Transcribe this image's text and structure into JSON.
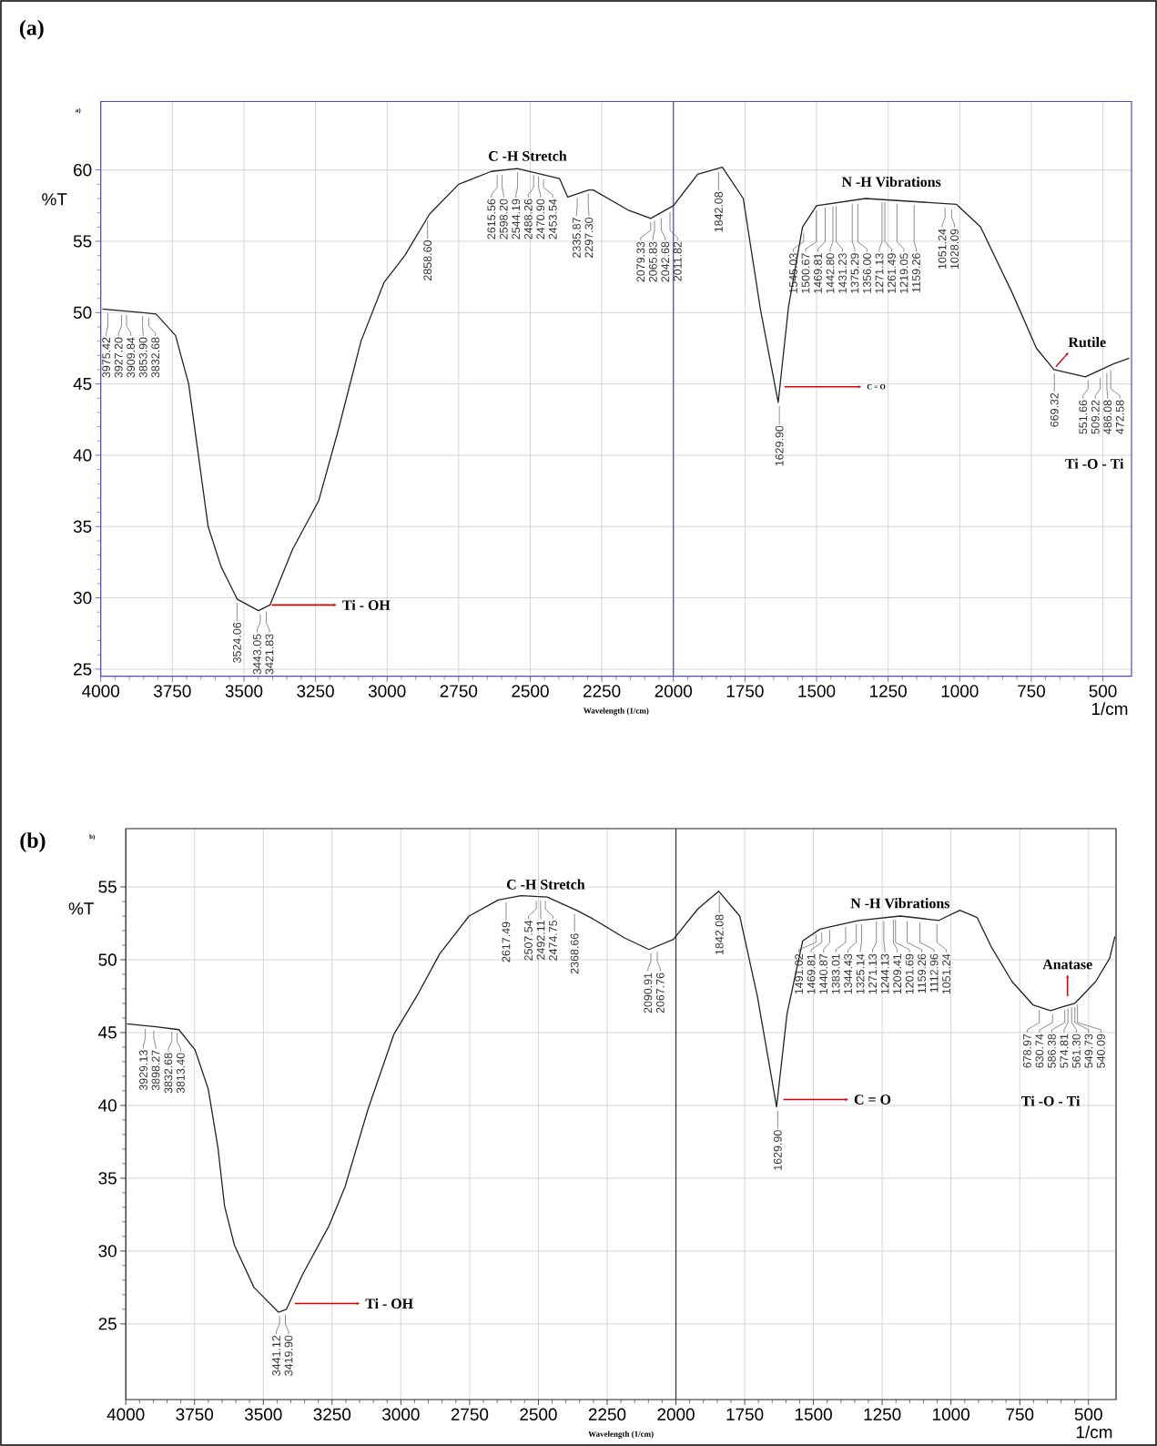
{
  "chart_data": [
    {
      "type": "line",
      "title": "(a)",
      "subtitle": "a)",
      "xlabel": "Wavelength (1/cm)",
      "ylabel": "%T",
      "xlim": [
        4000,
        400
      ],
      "ylim": [
        24.5,
        64.8
      ],
      "xticks": [
        4000,
        3750,
        3500,
        3250,
        3000,
        2750,
        2500,
        2250,
        2000,
        1750,
        1500,
        1250,
        1000,
        750,
        500
      ],
      "yticks": [
        25,
        30,
        35,
        40,
        45,
        50,
        55,
        60
      ],
      "grid": true,
      "ref_lines": [
        {
          "axis": "x",
          "value": 2000,
          "color": "#4a4ac8"
        }
      ],
      "series": [
        {
          "color": "#222222",
          "x": [
            3994,
            3852,
            3807,
            3739,
            3693,
            3659,
            3625,
            3580,
            3523,
            3449,
            3409,
            3330,
            3239,
            3170,
            3091,
            3011,
            2938,
            2852,
            2750,
            2636,
            2545,
            2398,
            2369,
            2295,
            2280,
            2159,
            2079,
            2000,
            1915,
            1829,
            1756,
            1695,
            1634,
            1598,
            1549,
            1500,
            1329,
            1012,
            927,
            817,
            732,
            671,
            561,
            463,
            408
          ],
          "values": [
            50.25,
            50.0,
            49.9,
            48.4,
            45.0,
            40.0,
            35.0,
            32.2,
            29.9,
            29.1,
            29.5,
            33.4,
            36.8,
            41.8,
            48.0,
            52.1,
            54.0,
            56.9,
            59.0,
            59.9,
            60.1,
            59.4,
            58.1,
            58.6,
            58.6,
            57.2,
            56.6,
            57.5,
            59.7,
            60.2,
            58.0,
            50.1,
            43.7,
            50.4,
            56.0,
            57.5,
            58.0,
            57.6,
            56.0,
            51.4,
            47.5,
            46.0,
            45.5,
            46.4,
            46.8
          ]
        }
      ],
      "annotations": [
        "C -H Stretch",
        "N -H Vibrations",
        {
          "text": "Ti - OH",
          "x": 3403,
          "y": 29.5
        },
        {
          "text": "C = O",
          "x": 1612,
          "y": 44.8
        },
        {
          "text": "Rutile",
          "x": 664,
          "y": 46.2
        },
        "Ti -O - Ti",
        {
          "text": "3975.42",
          "x": 3975.42,
          "y": 50.2
        },
        {
          "text": "3927.20",
          "x": 3927.2,
          "y": 50.1
        },
        {
          "text": "3909.84",
          "x": 3909.84,
          "y": 50.1
        },
        {
          "text": "3853.90",
          "x": 3853.9,
          "y": 50.0
        },
        {
          "text": "3832.68",
          "x": 3832.68,
          "y": 49.9
        },
        {
          "text": "3524.06",
          "x": 3524.06,
          "y": 29.9
        },
        {
          "text": "3443.05",
          "x": 3443.05,
          "y": 29.1
        },
        {
          "text": "3421.83",
          "x": 3421.83,
          "y": 29.3
        },
        {
          "text": "2858.60",
          "x": 2858.6,
          "y": 56.7
        },
        {
          "text": "2615.56",
          "x": 2615.56,
          "y": 59.9
        },
        {
          "text": "2598.20",
          "x": 2598.2,
          "y": 59.9
        },
        {
          "text": "2544.19",
          "x": 2544.19,
          "y": 60.1
        },
        {
          "text": "2488.26",
          "x": 2488.26,
          "y": 59.9
        },
        {
          "text": "2470.90",
          "x": 2470.9,
          "y": 59.8
        },
        {
          "text": "2453.54",
          "x": 2453.54,
          "y": 59.6
        },
        {
          "text": "2335.87",
          "x": 2335.87,
          "y": 58.3
        },
        {
          "text": "2297.30",
          "x": 2297.3,
          "y": 58.6
        },
        {
          "text": "2079.33",
          "x": 2079.33,
          "y": 56.6
        },
        {
          "text": "2065.83",
          "x": 2065.83,
          "y": 56.7
        },
        {
          "text": "2042.68",
          "x": 2042.68,
          "y": 56.9
        },
        {
          "text": "2011.82",
          "x": 2011.82,
          "y": 57.3
        },
        {
          "text": "1842.08",
          "x": 1842.08,
          "y": 60.1
        },
        {
          "text": "1629.90",
          "x": 1629.9,
          "y": 43.7
        },
        {
          "text": "1545.03",
          "x": 1545.03,
          "y": 55.8
        },
        {
          "text": "1500.67",
          "x": 1500.67,
          "y": 57.4
        },
        {
          "text": "1469.81",
          "x": 1469.81,
          "y": 57.6
        },
        {
          "text": "1442.80",
          "x": 1442.8,
          "y": 57.7
        },
        {
          "text": "1431.23",
          "x": 1431.23,
          "y": 57.7
        },
        {
          "text": "1375.29",
          "x": 1375.29,
          "y": 57.9
        },
        {
          "text": "1356.00",
          "x": 1356.0,
          "y": 57.9
        },
        {
          "text": "1271.13",
          "x": 1271.13,
          "y": 58.0
        },
        {
          "text": "1261.49",
          "x": 1261.49,
          "y": 58.0
        },
        {
          "text": "1219.05",
          "x": 1219.05,
          "y": 57.9
        },
        {
          "text": "1159.26",
          "x": 1159.26,
          "y": 57.8
        },
        {
          "text": "1051.24",
          "x": 1051.24,
          "y": 57.6
        },
        {
          "text": "1028.09",
          "x": 1028.09,
          "y": 57.5
        },
        {
          "text": "669.32",
          "x": 669.32,
          "y": 46.0
        },
        {
          "text": "551.66",
          "x": 551.66,
          "y": 45.5
        },
        {
          "text": "509.22",
          "x": 509.22,
          "y": 45.7
        },
        {
          "text": "486.08",
          "x": 486.08,
          "y": 46.0
        },
        {
          "text": "472.58",
          "x": 472.58,
          "y": 46.2
        },
        "1/cm"
      ]
    },
    {
      "type": "line",
      "title": "(b)",
      "subtitle": "b)",
      "xlabel": "Wavelength (1/cm)",
      "ylabel": "%T",
      "xlim": [
        4000,
        400
      ],
      "ylim": [
        19.8,
        59
      ],
      "xticks": [
        4000,
        3750,
        3500,
        3250,
        3000,
        2750,
        2500,
        2250,
        2000,
        1750,
        1500,
        1250,
        1000,
        750,
        500
      ],
      "yticks": [
        25,
        30,
        35,
        40,
        45,
        50,
        55
      ],
      "grid": true,
      "ref_lines": [
        {
          "axis": "x",
          "value": 2000,
          "color": "#333333"
        }
      ],
      "series": [
        {
          "color": "#222222",
          "x": [
            3996,
            3890,
            3807,
            3748,
            3700,
            3665,
            3641,
            3605,
            3534,
            3445,
            3416,
            3357,
            3262,
            3203,
            3120,
            3025,
            2942,
            2859,
            2752,
            2646,
            2563,
            2468,
            2362,
            2301,
            2187,
            2098,
            2009,
            1920,
            1844,
            1768,
            1704,
            1634,
            1596,
            1539,
            1476,
            1336,
            1184,
            1044,
            968,
            905,
            854,
            778,
            702,
            638,
            588,
            550,
            474,
            423,
            404
          ],
          "values": [
            45.6,
            45.4,
            45.2,
            43.8,
            41.1,
            37.1,
            33.1,
            30.4,
            27.5,
            25.8,
            26.0,
            28.4,
            31.7,
            34.4,
            39.7,
            44.9,
            47.5,
            50.4,
            53.0,
            54.1,
            54.4,
            54.3,
            53.4,
            52.8,
            51.5,
            50.7,
            51.4,
            53.5,
            54.7,
            53.0,
            47.5,
            39.9,
            46.3,
            51.3,
            52.1,
            52.7,
            53.0,
            52.7,
            53.4,
            52.9,
            50.9,
            48.5,
            46.9,
            46.5,
            46.8,
            47.0,
            48.5,
            50.1,
            51.6
          ]
        }
      ],
      "annotations": [
        "C -H Stretch",
        "N -H Vibrations",
        {
          "text": "Ti - OH",
          "x": 3386,
          "y": 26.4
        },
        "C = O",
        "Anatase",
        "Ti -O - Ti",
        {
          "text": "3929.13",
          "x": 3929.13,
          "y": 45.5
        },
        {
          "text": "3898.27",
          "x": 3898.27,
          "y": 45.4
        },
        {
          "text": "3832.68",
          "x": 3832.68,
          "y": 45.3
        },
        {
          "text": "3813.40",
          "x": 3813.4,
          "y": 45.2
        },
        {
          "text": "3441.12",
          "x": 3441.12,
          "y": 25.8
        },
        {
          "text": "3419.90",
          "x": 3419.9,
          "y": 25.9
        },
        {
          "text": "2617.49",
          "x": 2617.49,
          "y": 54.2
        },
        {
          "text": "2507.54",
          "x": 2507.54,
          "y": 54.3
        },
        {
          "text": "2492.11",
          "x": 2492.11,
          "y": 54.3
        },
        {
          "text": "2474.75",
          "x": 2474.75,
          "y": 54.3
        },
        {
          "text": "2368.66",
          "x": 2368.66,
          "y": 53.4
        },
        {
          "text": "2090.91",
          "x": 2090.91,
          "y": 50.7
        },
        {
          "text": "2067.76",
          "x": 2067.76,
          "y": 50.8
        },
        {
          "text": "1842.08",
          "x": 1842.08,
          "y": 54.7
        },
        {
          "text": "1629.90",
          "x": 1629.9,
          "y": 39.9
        },
        {
          "text": "1491.02",
          "x": 1491.02,
          "y": 52.0
        },
        {
          "text": "1469.81",
          "x": 1469.81,
          "y": 52.1
        },
        {
          "text": "1440.87",
          "x": 1440.87,
          "y": 52.3
        },
        {
          "text": "1383.01",
          "x": 1383.01,
          "y": 52.5
        },
        {
          "text": "1344.43",
          "x": 1344.43,
          "y": 52.7
        },
        {
          "text": "1325.14",
          "x": 1325.14,
          "y": 52.7
        },
        {
          "text": "1271.13",
          "x": 1271.13,
          "y": 52.9
        },
        {
          "text": "1244.13",
          "x": 1244.13,
          "y": 52.9
        },
        {
          "text": "1209.41",
          "x": 1209.41,
          "y": 53.0
        },
        {
          "text": "1201.69",
          "x": 1201.69,
          "y": 53.0
        },
        {
          "text": "1159.26",
          "x": 1159.26,
          "y": 52.9
        },
        {
          "text": "1112.96",
          "x": 1112.96,
          "y": 52.8
        },
        {
          "text": "1051.24",
          "x": 1051.24,
          "y": 52.7
        },
        {
          "text": "678.97",
          "x": 678.97,
          "y": 46.8
        },
        {
          "text": "630.74",
          "x": 630.74,
          "y": 46.5
        },
        {
          "text": "586.38",
          "x": 586.38,
          "y": 46.8
        },
        {
          "text": "574.81",
          "x": 574.81,
          "y": 46.9
        },
        {
          "text": "561.30",
          "x": 561.3,
          "y": 47.0
        },
        {
          "text": "549.73",
          "x": 549.73,
          "y": 47.0
        },
        {
          "text": "540.09",
          "x": 540.09,
          "y": 47.2
        },
        "1/cm"
      ]
    }
  ]
}
